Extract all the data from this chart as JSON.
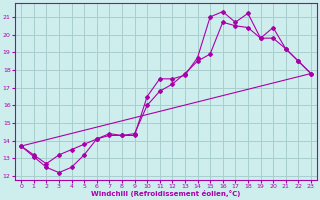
{
  "background_color": "#ceeeed",
  "grid_color": "#a8cece",
  "line_color": "#aa00aa",
  "marker": "D",
  "marker_size": 2,
  "xlabel": "Windchill (Refroidissement éolien,°C)",
  "xlim": [
    -0.5,
    23.5
  ],
  "ylim": [
    11.8,
    21.8
  ],
  "yticks": [
    12,
    13,
    14,
    15,
    16,
    17,
    18,
    19,
    20,
    21
  ],
  "xticks": [
    0,
    1,
    2,
    3,
    4,
    5,
    6,
    7,
    8,
    9,
    10,
    11,
    12,
    13,
    14,
    15,
    16,
    17,
    18,
    19,
    20,
    21,
    22,
    23
  ],
  "line1_x": [
    0,
    1,
    2,
    3,
    4,
    5,
    6,
    7,
    8,
    9,
    10,
    11,
    12,
    13,
    14,
    15,
    16,
    17,
    18,
    19,
    20,
    21,
    22,
    23
  ],
  "line1_y": [
    13.7,
    13.1,
    12.5,
    12.2,
    12.5,
    13.2,
    14.1,
    14.4,
    14.3,
    14.3,
    16.5,
    17.5,
    17.5,
    17.7,
    18.7,
    21.0,
    21.3,
    20.7,
    21.2,
    19.8,
    20.4,
    19.2,
    18.5,
    17.8
  ],
  "line2_x": [
    0,
    1,
    2,
    3,
    4,
    5,
    6,
    7,
    8,
    9,
    10,
    11,
    12,
    13,
    14,
    15,
    16,
    17,
    18,
    19,
    20,
    21,
    22,
    23
  ],
  "line2_y": [
    13.7,
    13.2,
    12.7,
    13.2,
    13.5,
    13.8,
    14.1,
    14.3,
    14.3,
    14.4,
    16.0,
    16.8,
    17.2,
    17.8,
    18.5,
    18.9,
    20.7,
    20.5,
    20.4,
    19.8,
    19.8,
    19.2,
    18.5,
    17.8
  ],
  "line3_x": [
    0,
    23
  ],
  "line3_y": [
    13.7,
    17.8
  ]
}
